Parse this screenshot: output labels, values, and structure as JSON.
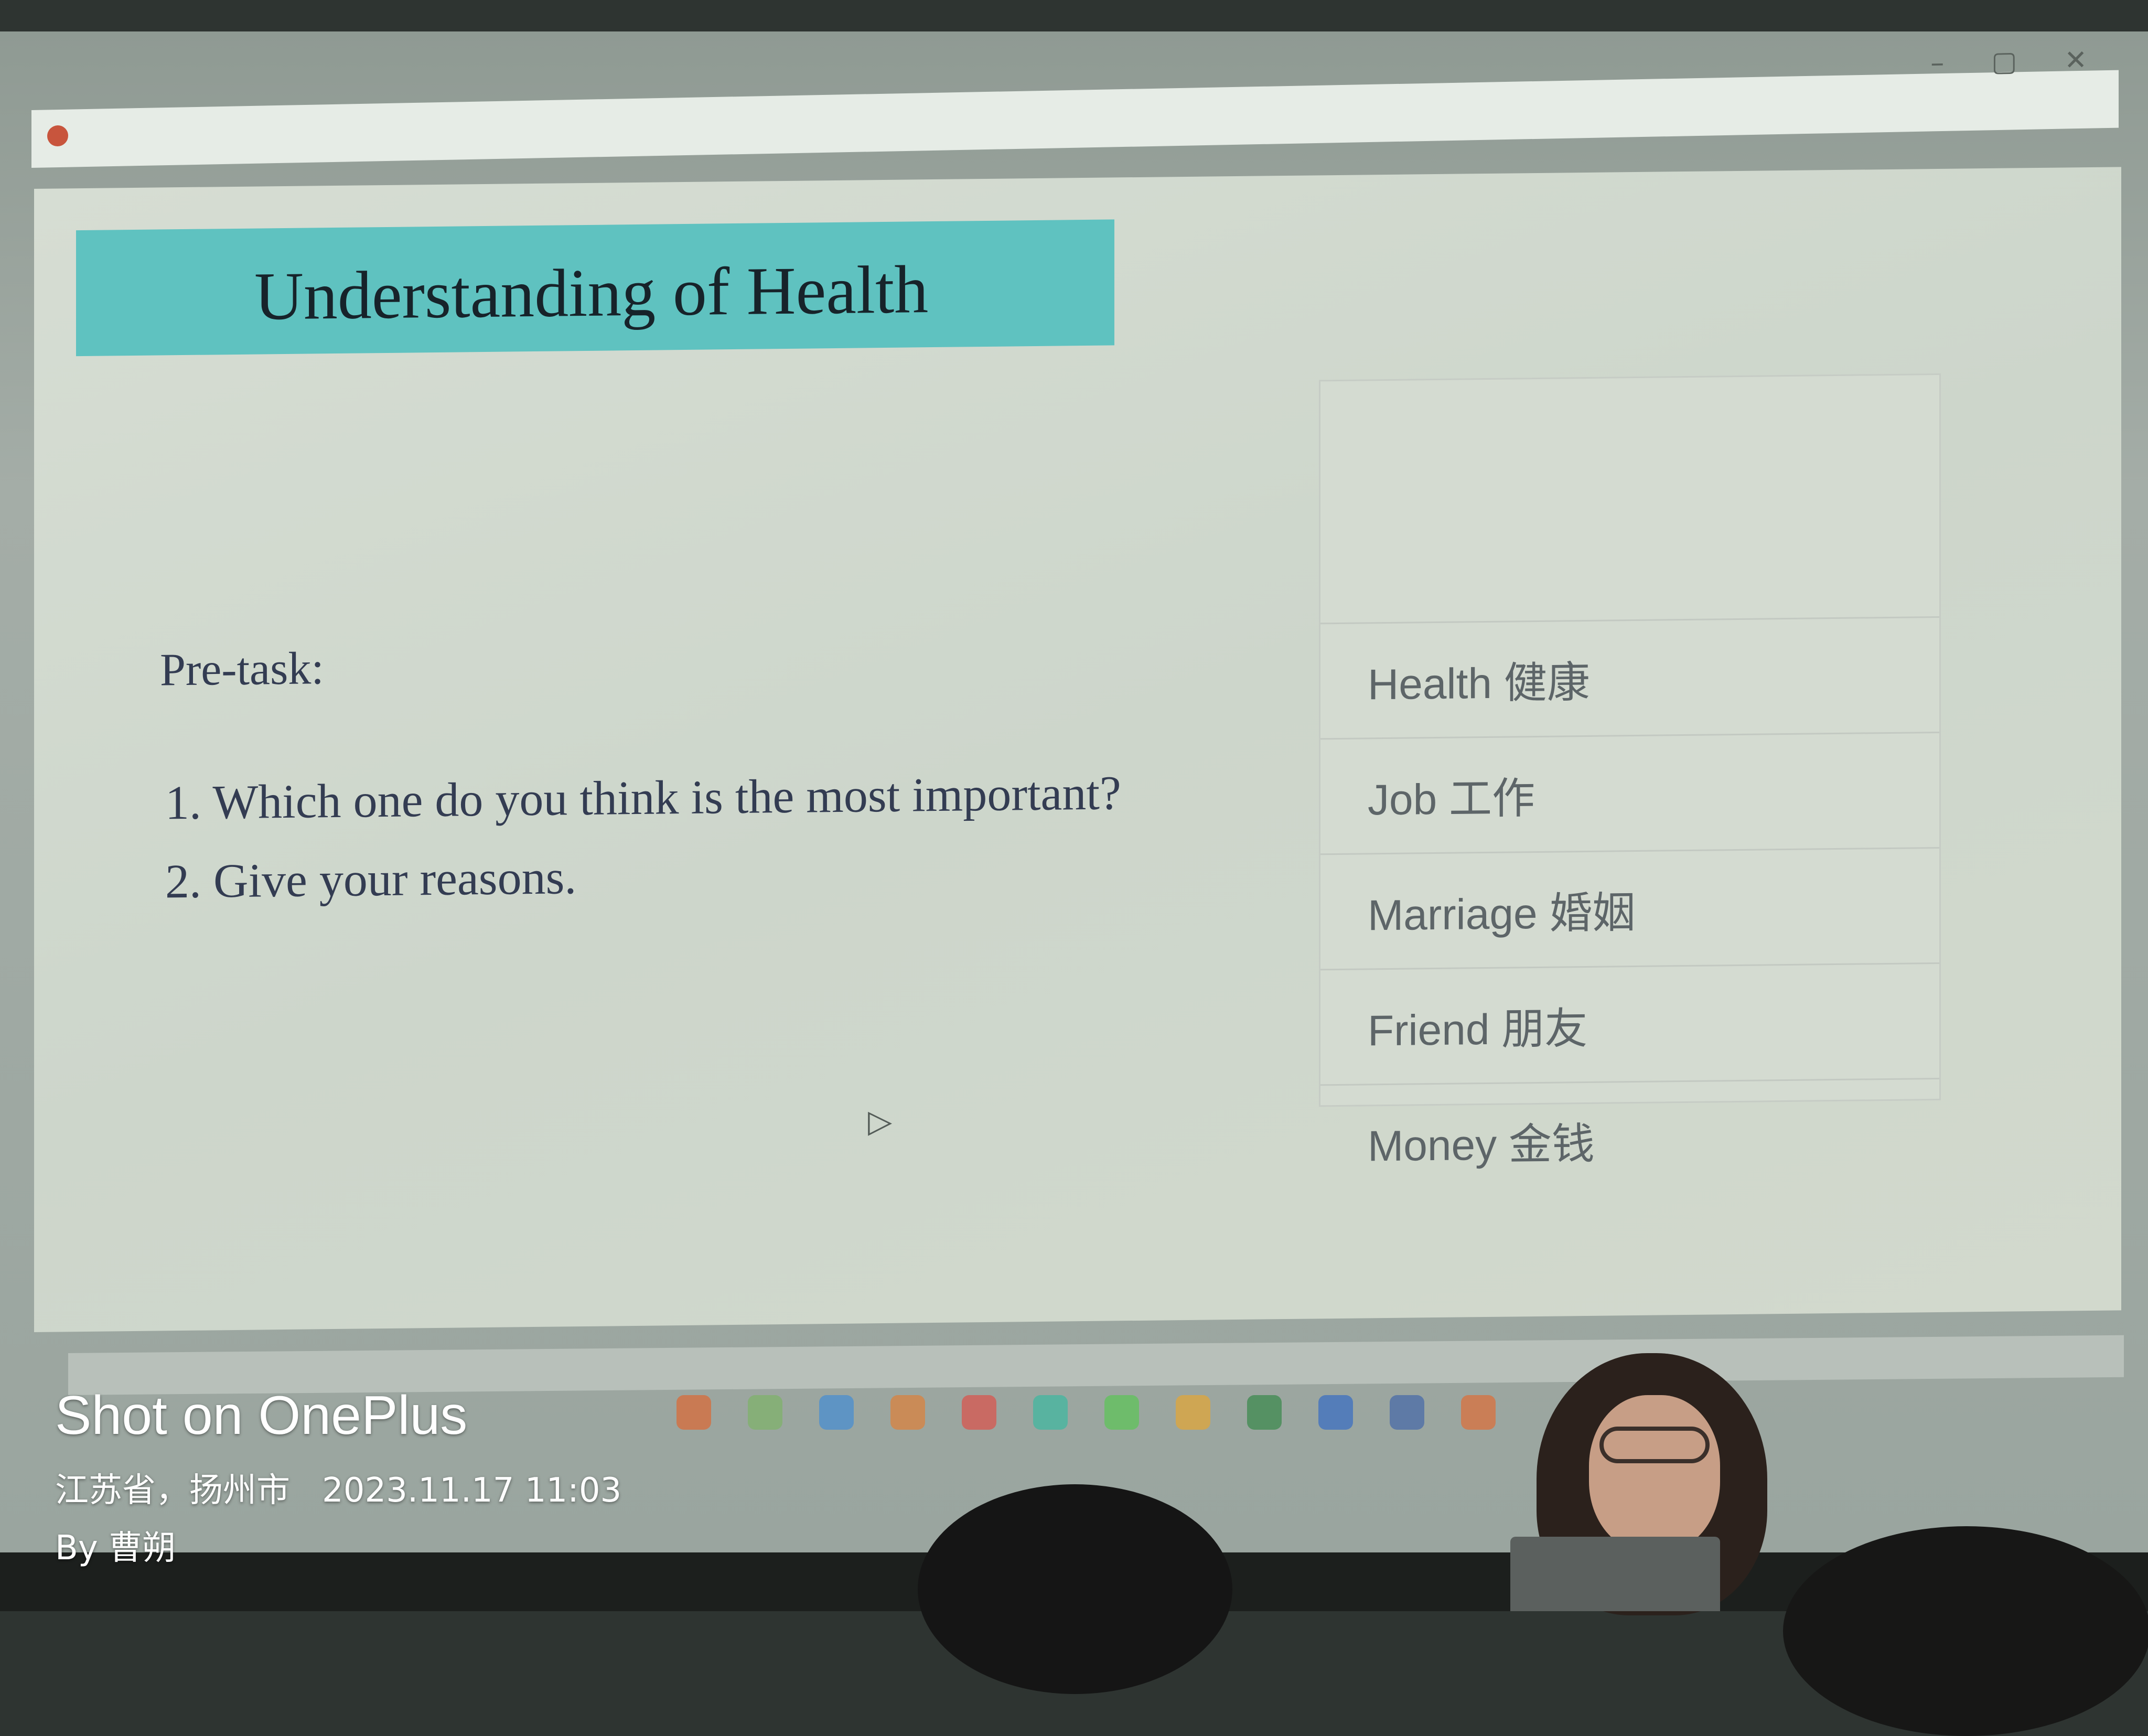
{
  "window": {
    "controls": {
      "minimize": "–",
      "maximize": "▢",
      "close": "✕"
    }
  },
  "slide": {
    "title": "Understanding of Health",
    "pretask_label": "Pre-task:",
    "questions": [
      "1. Which one do you think is the most important?",
      "2. Give your reasons."
    ],
    "options": [
      "Health 健康",
      "Job 工作",
      "Marriage 婚姻",
      "Friend 朋友",
      "Money 金钱"
    ],
    "colors": {
      "title_bar": "#5fc2c0",
      "background": "#d3dad0"
    }
  },
  "watermark": {
    "brand": "Shot on OnePlus",
    "location": "江苏省，扬州市",
    "datetime": "2023.11.17 11:03",
    "author": "By 曹朔"
  }
}
